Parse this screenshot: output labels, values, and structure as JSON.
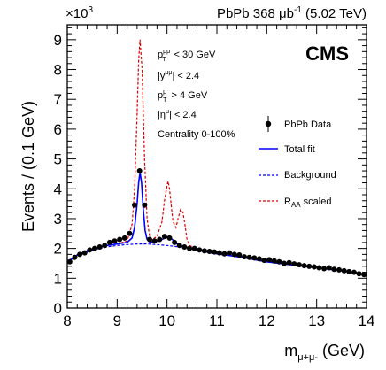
{
  "chart_data": {
    "type": "scatter",
    "header": {
      "multiplier": "×10",
      "multiplier_exp": "3",
      "lumi_prefix": "PbPb 368 μb",
      "lumi_exp": "-1",
      "lumi_suffix": " (5.02 TeV)"
    },
    "cms_label": "CMS",
    "ylabel": "Events / (0.1 GeV)",
    "xlabel": {
      "base": "m",
      "sub": "μ+μ-",
      "suffix": " (GeV)"
    },
    "xlim": [
      8,
      14
    ],
    "ylim": [
      0,
      9.5
    ],
    "x_ticks": [
      "8",
      "9",
      "10",
      "11",
      "12",
      "13",
      "14"
    ],
    "y_ticks": [
      "0",
      "1",
      "2",
      "3",
      "4",
      "5",
      "6",
      "7",
      "8",
      "9"
    ],
    "selections": [
      {
        "base": "p",
        "sub": "T",
        "sup": "μμ",
        "rest": " < 30 GeV"
      },
      {
        "base": "|y",
        "sub": "",
        "sup": "μμ",
        "rest": "| < 2.4"
      },
      {
        "base": "p",
        "sub": "T",
        "sup": "μ",
        "rest": " > 4 GeV"
      },
      {
        "base": "|η",
        "sub": "",
        "sup": "μ",
        "rest": "| < 2.4"
      },
      {
        "base": "Centrality 0-100%",
        "sub": "",
        "sup": "",
        "rest": ""
      }
    ],
    "legend": [
      {
        "label": "PbPb Data",
        "sub": "",
        "rest": "",
        "style": "marker",
        "color": "#000000"
      },
      {
        "label": "Total fit",
        "sub": "",
        "rest": "",
        "style": "solid",
        "color": "#0000ff"
      },
      {
        "label": "Background",
        "sub": "",
        "rest": "",
        "style": "dashed",
        "color": "#0000ff"
      },
      {
        "label": "R",
        "sub": "AA",
        "rest": " scaled",
        "style": "dashed",
        "color": "#e00000"
      }
    ],
    "legend_position": "right",
    "series": [
      {
        "name": "PbPb Data",
        "x": [
          8.05,
          8.15,
          8.25,
          8.35,
          8.45,
          8.55,
          8.65,
          8.75,
          8.85,
          8.95,
          9.05,
          9.15,
          9.25,
          9.35,
          9.45,
          9.55,
          9.65,
          9.75,
          9.85,
          9.95,
          10.05,
          10.15,
          10.25,
          10.35,
          10.45,
          10.55,
          10.65,
          10.75,
          10.85,
          10.95,
          11.05,
          11.15,
          11.25,
          11.35,
          11.45,
          11.55,
          11.65,
          11.75,
          11.85,
          11.95,
          12.05,
          12.15,
          12.25,
          12.35,
          12.45,
          12.55,
          12.65,
          12.75,
          12.85,
          12.95,
          13.05,
          13.15,
          13.25,
          13.35,
          13.45,
          13.55,
          13.65,
          13.75,
          13.85,
          13.95
        ],
        "y": [
          1.55,
          1.7,
          1.8,
          1.85,
          1.95,
          2.0,
          2.05,
          2.1,
          2.2,
          2.25,
          2.3,
          2.35,
          2.5,
          3.45,
          4.6,
          3.45,
          2.3,
          2.25,
          2.3,
          2.4,
          2.35,
          2.2,
          2.1,
          2.05,
          2.0,
          2.0,
          1.95,
          1.92,
          1.9,
          1.88,
          1.85,
          1.82,
          1.85,
          1.8,
          1.78,
          1.72,
          1.7,
          1.68,
          1.65,
          1.6,
          1.62,
          1.58,
          1.55,
          1.5,
          1.52,
          1.48,
          1.45,
          1.42,
          1.4,
          1.38,
          1.35,
          1.32,
          1.35,
          1.3,
          1.28,
          1.25,
          1.22,
          1.2,
          1.15,
          1.12
        ],
        "yerr": 0.08
      },
      {
        "name": "Total fit",
        "x": [
          8.0,
          8.2,
          8.4,
          8.6,
          8.8,
          9.0,
          9.2,
          9.3,
          9.35,
          9.4,
          9.43,
          9.46,
          9.49,
          9.52,
          9.56,
          9.6,
          9.65,
          9.7,
          9.8,
          9.9,
          10.0,
          10.03,
          10.07,
          10.12,
          10.2,
          10.3,
          10.35,
          10.4,
          10.5,
          10.6,
          10.8,
          11.0,
          11.5,
          12.0,
          12.5,
          13.0,
          13.5,
          14.0
        ],
        "y": [
          1.55,
          1.78,
          1.92,
          2.02,
          2.1,
          2.15,
          2.2,
          2.35,
          2.7,
          3.5,
          4.2,
          4.55,
          4.2,
          3.4,
          2.6,
          2.3,
          2.22,
          2.22,
          2.25,
          2.3,
          2.38,
          2.4,
          2.35,
          2.28,
          2.15,
          2.08,
          2.06,
          2.04,
          2.0,
          1.95,
          1.88,
          1.82,
          1.7,
          1.55,
          1.45,
          1.35,
          1.25,
          1.13
        ]
      },
      {
        "name": "Background",
        "x": [
          8.0,
          8.2,
          8.4,
          8.6,
          8.8,
          9.0,
          9.2,
          9.4,
          9.6,
          9.8,
          10.0,
          10.2,
          10.4,
          10.6,
          10.8,
          11.0,
          11.5,
          12.0,
          12.5,
          13.0,
          13.5,
          14.0
        ],
        "y": [
          1.55,
          1.75,
          1.88,
          1.98,
          2.05,
          2.1,
          2.13,
          2.15,
          2.15,
          2.13,
          2.1,
          2.06,
          2.02,
          1.97,
          1.92,
          1.87,
          1.73,
          1.58,
          1.45,
          1.35,
          1.25,
          1.13
        ]
      },
      {
        "name": "R_AA scaled",
        "x": [
          8.0,
          8.2,
          8.4,
          8.6,
          8.8,
          9.0,
          9.2,
          9.3,
          9.35,
          9.4,
          9.43,
          9.46,
          9.5,
          9.55,
          9.6,
          9.65,
          9.7,
          9.8,
          9.9,
          9.95,
          10.0,
          10.02,
          10.05,
          10.08,
          10.12,
          10.18,
          10.22,
          10.27,
          10.32,
          10.36,
          10.4,
          10.45,
          10.55,
          10.7,
          11.0,
          11.5,
          12.0,
          12.5,
          13.0,
          13.5,
          14.0
        ],
        "y": [
          1.55,
          1.78,
          1.92,
          2.02,
          2.1,
          2.15,
          2.25,
          2.8,
          4.0,
          6.5,
          8.3,
          9.0,
          8.0,
          5.0,
          3.0,
          2.4,
          2.3,
          2.4,
          2.9,
          3.6,
          4.1,
          4.25,
          4.0,
          3.5,
          2.9,
          2.7,
          3.0,
          3.3,
          3.2,
          2.8,
          2.3,
          2.1,
          2.02,
          1.95,
          1.87,
          1.73,
          1.58,
          1.45,
          1.35,
          1.25,
          1.13
        ]
      }
    ]
  }
}
